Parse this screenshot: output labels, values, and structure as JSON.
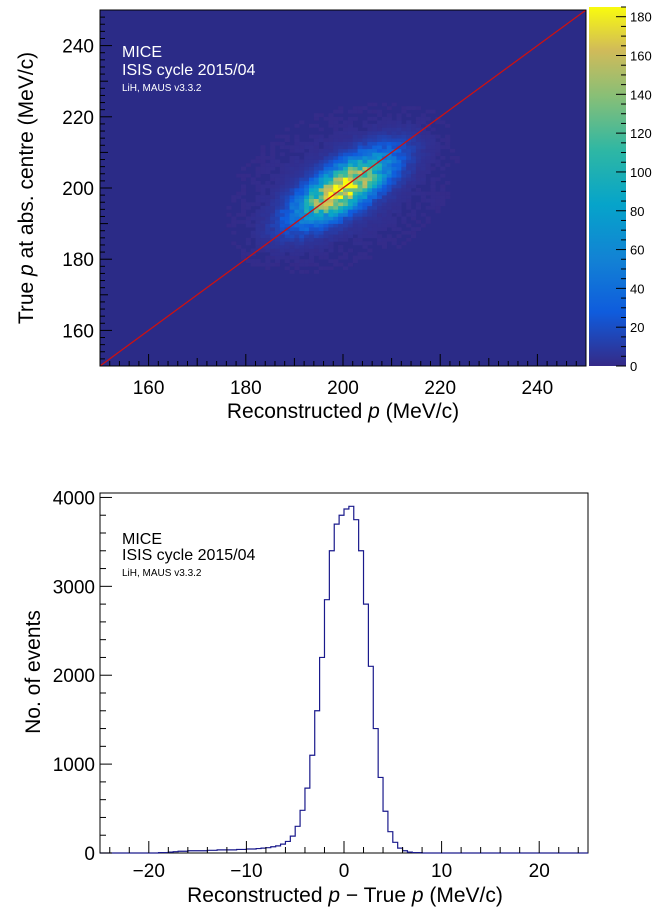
{
  "chart_data": [
    {
      "type": "heatmap",
      "xlabel": "Reconstructed p (MeV/c)",
      "ylabel": "True p at abs. centre (MeV/c)",
      "xlim": [
        150,
        250
      ],
      "ylim": [
        150,
        250
      ],
      "x_ticks": [
        160,
        180,
        200,
        220,
        240
      ],
      "y_ticks": [
        160,
        180,
        200,
        220,
        240
      ],
      "annotations": [
        "MICE",
        "ISIS cycle 2015/04",
        "LiH, MAUS v3.3.2"
      ],
      "colorbar": {
        "min": 0,
        "max": 185,
        "ticks": [
          0,
          20,
          40,
          60,
          80,
          100,
          120,
          140,
          160,
          180
        ]
      },
      "distribution": {
        "mean_x": 200,
        "mean_y": 200,
        "core_width": 3.2,
        "core_spread": 14,
        "peak_count": 180
      },
      "diagonal_line": {
        "from": [
          150,
          150
        ],
        "to": [
          250,
          250
        ],
        "color": "#cc1111"
      },
      "grid": false,
      "background_color": "#2b2b87"
    },
    {
      "type": "line",
      "subtype": "histogram",
      "xlabel": "Reconstructed p − True p (MeV/c)",
      "ylabel": "No. of events",
      "xlim": [
        -25,
        25
      ],
      "ylim": [
        0,
        4050
      ],
      "x_ticks": [
        -20,
        -10,
        0,
        10,
        20
      ],
      "y_ticks": [
        0,
        1000,
        2000,
        3000,
        4000
      ],
      "annotations": [
        "MICE",
        "ISIS cycle 2015/04",
        "LiH, MAUS v3.3.2"
      ],
      "bin_width": 0.5,
      "bin_edges_range": [
        -25,
        25
      ],
      "values": [
        0,
        0,
        0,
        0,
        0,
        0,
        0,
        0,
        0,
        0,
        0,
        0,
        5,
        5,
        10,
        15,
        20,
        20,
        25,
        25,
        25,
        25,
        30,
        30,
        35,
        35,
        35,
        35,
        40,
        40,
        45,
        45,
        50,
        55,
        60,
        70,
        80,
        100,
        130,
        190,
        300,
        480,
        730,
        1100,
        1600,
        2200,
        2850,
        3400,
        3700,
        3800,
        3870,
        3900,
        3750,
        3400,
        2800,
        2100,
        1400,
        850,
        470,
        240,
        120,
        55,
        25,
        10,
        5,
        5,
        0,
        0,
        0,
        0,
        0,
        0,
        0,
        0,
        0,
        0,
        0,
        0,
        0,
        0,
        0,
        0,
        0,
        0,
        0,
        0,
        0,
        0,
        0,
        0,
        0,
        0,
        0,
        0,
        0,
        0,
        0,
        0,
        0,
        0
      ],
      "line_color": "#1a1a8c",
      "grid": false
    }
  ]
}
